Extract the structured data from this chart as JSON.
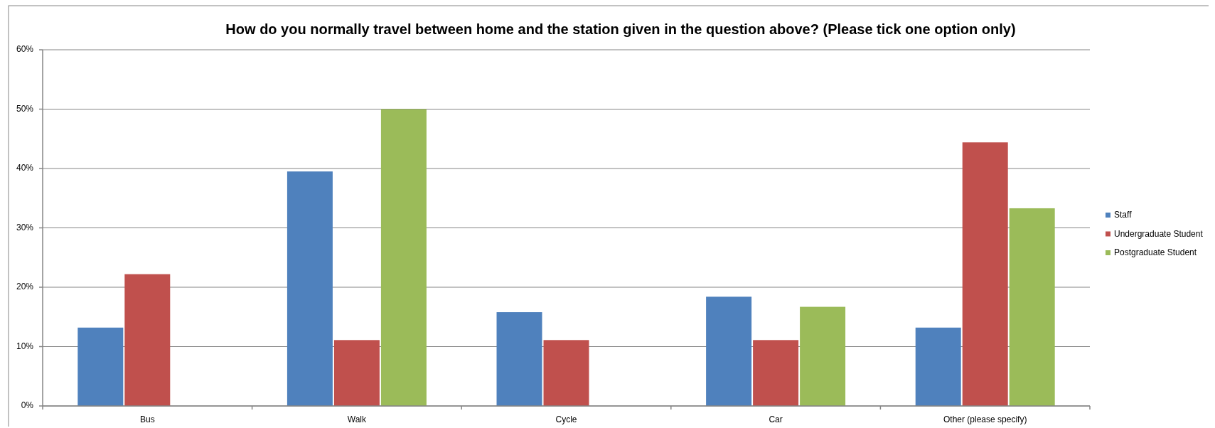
{
  "chart_data": {
    "type": "bar",
    "title": "How do you normally travel between home and the station given in the question above? (Please tick one option only)",
    "categories": [
      "Bus",
      "Walk",
      "Cycle",
      "Car",
      "Other (please specify)"
    ],
    "series": [
      {
        "name": "Staff",
        "color": "#4f81bd",
        "values": [
          13.2,
          39.5,
          15.8,
          18.4,
          13.2
        ]
      },
      {
        "name": "Undergraduate Student",
        "color": "#c0504d",
        "values": [
          22.2,
          11.1,
          11.1,
          11.1,
          44.4
        ]
      },
      {
        "name": "Postgraduate Student",
        "color": "#9bbb59",
        "values": [
          0,
          50,
          0,
          16.7,
          33.3
        ]
      }
    ],
    "ylim": [
      0,
      60
    ],
    "yticks": [
      {
        "value": 0,
        "label": "0%"
      },
      {
        "value": 10,
        "label": "10%"
      },
      {
        "value": 20,
        "label": "20%"
      },
      {
        "value": 30,
        "label": "30%"
      },
      {
        "value": 40,
        "label": "40%"
      },
      {
        "value": 50,
        "label": "50%"
      },
      {
        "value": 60,
        "label": "60%"
      }
    ],
    "grid": "y",
    "legend": "right"
  }
}
